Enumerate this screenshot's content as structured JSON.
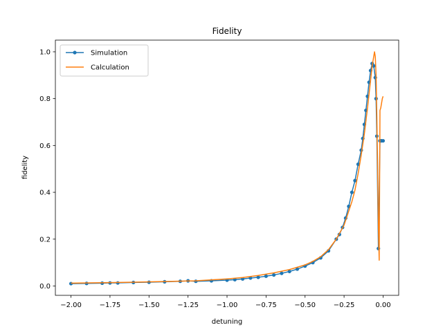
{
  "chart_data": {
    "type": "line",
    "title": "Fidelity",
    "xlabel": "detuning",
    "ylabel": "fidelity",
    "xlim": [
      -2.1,
      0.1
    ],
    "ylim": [
      -0.04,
      1.05
    ],
    "xticks": [
      -2.0,
      -1.75,
      -1.5,
      -1.25,
      -1.0,
      -0.75,
      -0.5,
      -0.25,
      0.0
    ],
    "xtick_labels": [
      "−2.00",
      "−1.75",
      "−1.50",
      "−1.25",
      "−1.00",
      "−0.75",
      "−0.50",
      "−0.25",
      "0.00"
    ],
    "yticks": [
      0.0,
      0.2,
      0.4,
      0.6,
      0.8,
      1.0
    ],
    "ytick_labels": [
      "0.0",
      "0.2",
      "0.4",
      "0.6",
      "0.8",
      "1.0"
    ],
    "grid": false,
    "legend_position": "upper-left",
    "series": [
      {
        "name": "Simulation",
        "color": "#1f77b4",
        "marker": "dot",
        "x": [
          -2.0,
          -1.9,
          -1.8,
          -1.75,
          -1.7,
          -1.6,
          -1.5,
          -1.4,
          -1.3,
          -1.25,
          -1.2,
          -1.1,
          -1.0,
          -0.95,
          -0.9,
          -0.85,
          -0.8,
          -0.75,
          -0.7,
          -0.65,
          -0.6,
          -0.55,
          -0.5,
          -0.45,
          -0.4,
          -0.35,
          -0.3,
          -0.28,
          -0.26,
          -0.24,
          -0.22,
          -0.2,
          -0.18,
          -0.16,
          -0.14,
          -0.13,
          -0.12,
          -0.11,
          -0.1,
          -0.09,
          -0.08,
          -0.07,
          -0.06,
          -0.05,
          -0.045,
          -0.04,
          -0.03,
          -0.02,
          -0.015,
          -0.01,
          0.0
        ],
        "y": [
          0.01,
          0.011,
          0.012,
          0.013,
          0.013,
          0.015,
          0.016,
          0.018,
          0.02,
          0.022,
          0.02,
          0.022,
          0.025,
          0.027,
          0.03,
          0.034,
          0.037,
          0.042,
          0.047,
          0.054,
          0.062,
          0.072,
          0.085,
          0.1,
          0.12,
          0.15,
          0.2,
          0.22,
          0.25,
          0.29,
          0.34,
          0.4,
          0.45,
          0.52,
          0.58,
          0.63,
          0.69,
          0.75,
          0.81,
          0.87,
          0.92,
          0.95,
          0.94,
          0.89,
          0.8,
          0.64,
          0.16,
          0.62,
          0.62,
          0.62,
          0.62
        ]
      },
      {
        "name": "Calculation",
        "color": "#ff7f0e",
        "marker": "none",
        "x": [
          -2.0,
          -1.8,
          -1.6,
          -1.4,
          -1.2,
          -1.0,
          -0.9,
          -0.8,
          -0.7,
          -0.6,
          -0.5,
          -0.45,
          -0.4,
          -0.35,
          -0.3,
          -0.25,
          -0.2,
          -0.18,
          -0.16,
          -0.14,
          -0.12,
          -0.1,
          -0.09,
          -0.08,
          -0.07,
          -0.06,
          -0.055,
          -0.05,
          -0.045,
          -0.04,
          -0.035,
          -0.03,
          -0.025,
          -0.02,
          -0.015,
          -0.01,
          -0.005,
          0.0
        ],
        "y": [
          0.012,
          0.014,
          0.016,
          0.019,
          0.022,
          0.03,
          0.036,
          0.045,
          0.056,
          0.07,
          0.09,
          0.105,
          0.125,
          0.155,
          0.2,
          0.26,
          0.36,
          0.41,
          0.48,
          0.56,
          0.65,
          0.76,
          0.82,
          0.88,
          0.94,
          0.98,
          1.0,
          0.98,
          0.9,
          0.72,
          0.5,
          0.25,
          0.11,
          0.75,
          0.76,
          0.78,
          0.8,
          0.81
        ]
      }
    ]
  }
}
